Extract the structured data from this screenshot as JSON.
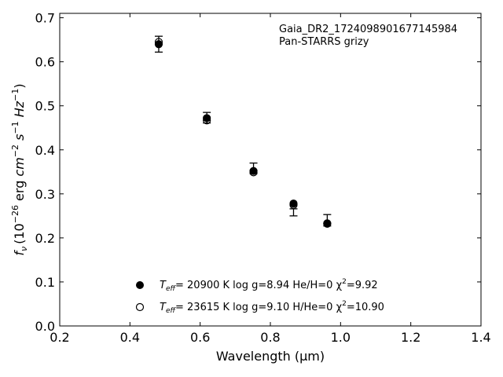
{
  "chart_data": {
    "type": "scatter",
    "xlabel": "Wavelength (μm)",
    "ylabel_parts": {
      "f": "f",
      "sub": "ν",
      "units": "(10",
      "exp1": "−26",
      "mid": " erg ",
      "cm": "cm",
      "exp2": "−2",
      "s": " s",
      "exp3": "−1",
      "hz": " Hz",
      "exp4": "−1",
      "close": ")"
    },
    "xlim": [
      0.2,
      1.4
    ],
    "ylim": [
      0.0,
      0.71
    ],
    "xticks": [
      "0.2",
      "0.4",
      "0.6",
      "0.8",
      "1.0",
      "1.2",
      "1.4"
    ],
    "yticks": [
      "0.0",
      "0.1",
      "0.2",
      "0.3",
      "0.4",
      "0.5",
      "0.6",
      "0.7"
    ],
    "annotation": [
      "Gaia_DR2_1724098901677145984",
      "Pan-STARRS grizy"
    ],
    "observed": {
      "x": [
        0.482,
        0.619,
        0.752,
        0.866,
        0.962
      ],
      "y": [
        0.64,
        0.473,
        0.358,
        0.258,
        0.24
      ],
      "err": [
        0.018,
        0.012,
        0.012,
        0.008,
        0.013
      ]
    },
    "series": [
      {
        "name_parts": {
          "t": "T",
          "sub": "eff",
          "rest": "= 20900 K  log g=8.94  He/H=0  χ",
          "sup": "2",
          "end": "=9.92"
        },
        "marker": "filled",
        "x": [
          0.482,
          0.619,
          0.752,
          0.866,
          0.962
        ],
        "y": [
          0.64,
          0.472,
          0.352,
          0.278,
          0.233
        ]
      },
      {
        "name_parts": {
          "t": "T",
          "sub": "eff",
          "rest": "= 23615 K  log g=9.10  H/He=0  χ",
          "sup": "2",
          "end": "=10.90"
        },
        "marker": "open",
        "x": [
          0.482,
          0.619,
          0.752,
          0.866,
          0.962
        ],
        "y": [
          0.645,
          0.467,
          0.349,
          0.275,
          0.232
        ]
      }
    ],
    "grid": false,
    "legend_position": "lower-center"
  }
}
